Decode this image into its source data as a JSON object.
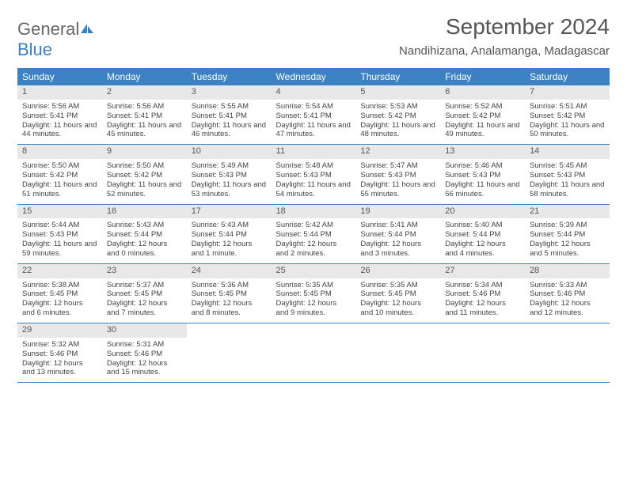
{
  "logo": {
    "text1": "General",
    "text2": "Blue"
  },
  "title": "September 2024",
  "location": "Nandihizana, Analamanga, Madagascar",
  "headers": [
    "Sunday",
    "Monday",
    "Tuesday",
    "Wednesday",
    "Thursday",
    "Friday",
    "Saturday"
  ],
  "header_bg": "#3b82c4",
  "header_fg": "#ffffff",
  "daynum_bg": "#e8e8e8",
  "days": [
    {
      "n": "1",
      "sr": "5:56 AM",
      "ss": "5:41 PM",
      "dl": "11 hours and 44 minutes."
    },
    {
      "n": "2",
      "sr": "5:56 AM",
      "ss": "5:41 PM",
      "dl": "11 hours and 45 minutes."
    },
    {
      "n": "3",
      "sr": "5:55 AM",
      "ss": "5:41 PM",
      "dl": "11 hours and 46 minutes."
    },
    {
      "n": "4",
      "sr": "5:54 AM",
      "ss": "5:41 PM",
      "dl": "11 hours and 47 minutes."
    },
    {
      "n": "5",
      "sr": "5:53 AM",
      "ss": "5:42 PM",
      "dl": "11 hours and 48 minutes."
    },
    {
      "n": "6",
      "sr": "5:52 AM",
      "ss": "5:42 PM",
      "dl": "11 hours and 49 minutes."
    },
    {
      "n": "7",
      "sr": "5:51 AM",
      "ss": "5:42 PM",
      "dl": "11 hours and 50 minutes."
    },
    {
      "n": "8",
      "sr": "5:50 AM",
      "ss": "5:42 PM",
      "dl": "11 hours and 51 minutes."
    },
    {
      "n": "9",
      "sr": "5:50 AM",
      "ss": "5:42 PM",
      "dl": "11 hours and 52 minutes."
    },
    {
      "n": "10",
      "sr": "5:49 AM",
      "ss": "5:43 PM",
      "dl": "11 hours and 53 minutes."
    },
    {
      "n": "11",
      "sr": "5:48 AM",
      "ss": "5:43 PM",
      "dl": "11 hours and 54 minutes."
    },
    {
      "n": "12",
      "sr": "5:47 AM",
      "ss": "5:43 PM",
      "dl": "11 hours and 55 minutes."
    },
    {
      "n": "13",
      "sr": "5:46 AM",
      "ss": "5:43 PM",
      "dl": "11 hours and 56 minutes."
    },
    {
      "n": "14",
      "sr": "5:45 AM",
      "ss": "5:43 PM",
      "dl": "11 hours and 58 minutes."
    },
    {
      "n": "15",
      "sr": "5:44 AM",
      "ss": "5:43 PM",
      "dl": "11 hours and 59 minutes."
    },
    {
      "n": "16",
      "sr": "5:43 AM",
      "ss": "5:44 PM",
      "dl": "12 hours and 0 minutes."
    },
    {
      "n": "17",
      "sr": "5:43 AM",
      "ss": "5:44 PM",
      "dl": "12 hours and 1 minute."
    },
    {
      "n": "18",
      "sr": "5:42 AM",
      "ss": "5:44 PM",
      "dl": "12 hours and 2 minutes."
    },
    {
      "n": "19",
      "sr": "5:41 AM",
      "ss": "5:44 PM",
      "dl": "12 hours and 3 minutes."
    },
    {
      "n": "20",
      "sr": "5:40 AM",
      "ss": "5:44 PM",
      "dl": "12 hours and 4 minutes."
    },
    {
      "n": "21",
      "sr": "5:39 AM",
      "ss": "5:44 PM",
      "dl": "12 hours and 5 minutes."
    },
    {
      "n": "22",
      "sr": "5:38 AM",
      "ss": "5:45 PM",
      "dl": "12 hours and 6 minutes."
    },
    {
      "n": "23",
      "sr": "5:37 AM",
      "ss": "5:45 PM",
      "dl": "12 hours and 7 minutes."
    },
    {
      "n": "24",
      "sr": "5:36 AM",
      "ss": "5:45 PM",
      "dl": "12 hours and 8 minutes."
    },
    {
      "n": "25",
      "sr": "5:35 AM",
      "ss": "5:45 PM",
      "dl": "12 hours and 9 minutes."
    },
    {
      "n": "26",
      "sr": "5:35 AM",
      "ss": "5:45 PM",
      "dl": "12 hours and 10 minutes."
    },
    {
      "n": "27",
      "sr": "5:34 AM",
      "ss": "5:46 PM",
      "dl": "12 hours and 11 minutes."
    },
    {
      "n": "28",
      "sr": "5:33 AM",
      "ss": "5:46 PM",
      "dl": "12 hours and 12 minutes."
    },
    {
      "n": "29",
      "sr": "5:32 AM",
      "ss": "5:46 PM",
      "dl": "12 hours and 13 minutes."
    },
    {
      "n": "30",
      "sr": "5:31 AM",
      "ss": "5:46 PM",
      "dl": "12 hours and 15 minutes."
    }
  ],
  "labels": {
    "sunrise": "Sunrise: ",
    "sunset": "Sunset: ",
    "daylight": "Daylight: "
  },
  "start_weekday": 0,
  "cols": 7
}
